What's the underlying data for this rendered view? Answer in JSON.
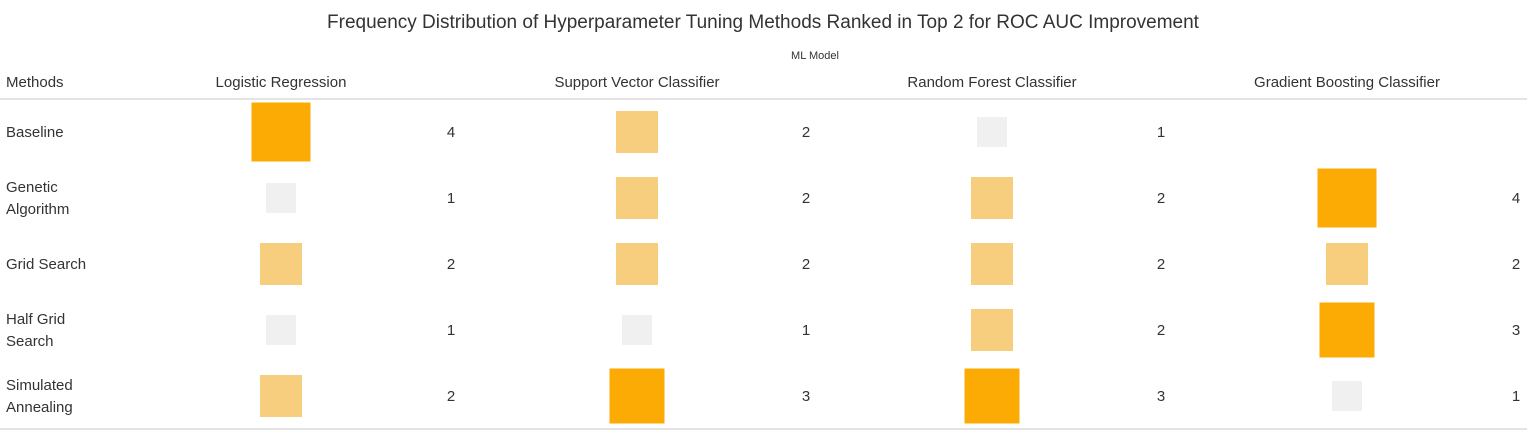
{
  "chart_data": {
    "type": "table",
    "title": "Frequency Distribution of Hyperparameter Tuning Methods Ranked in Top 2 for ROC AUC Improvement",
    "column_group_label": "ML Model",
    "row_header": "Methods",
    "columns": [
      "Logistic Regression",
      "Support Vector Classifier",
      "Random Forest Classifier",
      "Gradient Boosting Classifier"
    ],
    "rows": [
      {
        "label": [
          "Baseline"
        ],
        "values": [
          4,
          2,
          1,
          null
        ]
      },
      {
        "label": [
          "Genetic",
          "Algorithm"
        ],
        "values": [
          1,
          2,
          2,
          4
        ]
      },
      {
        "label": [
          "Grid Search"
        ],
        "values": [
          2,
          2,
          2,
          2
        ]
      },
      {
        "label": [
          "Half Grid",
          "Search"
        ],
        "values": [
          1,
          1,
          2,
          3
        ]
      },
      {
        "label": [
          "Simulated",
          "Annealing"
        ],
        "values": [
          2,
          3,
          3,
          1
        ]
      }
    ],
    "mark": "square",
    "max_value": 4,
    "colors": {
      "low": "#f0f0f0",
      "mid": "#f7ce7d",
      "high": "#fcaa04"
    }
  }
}
